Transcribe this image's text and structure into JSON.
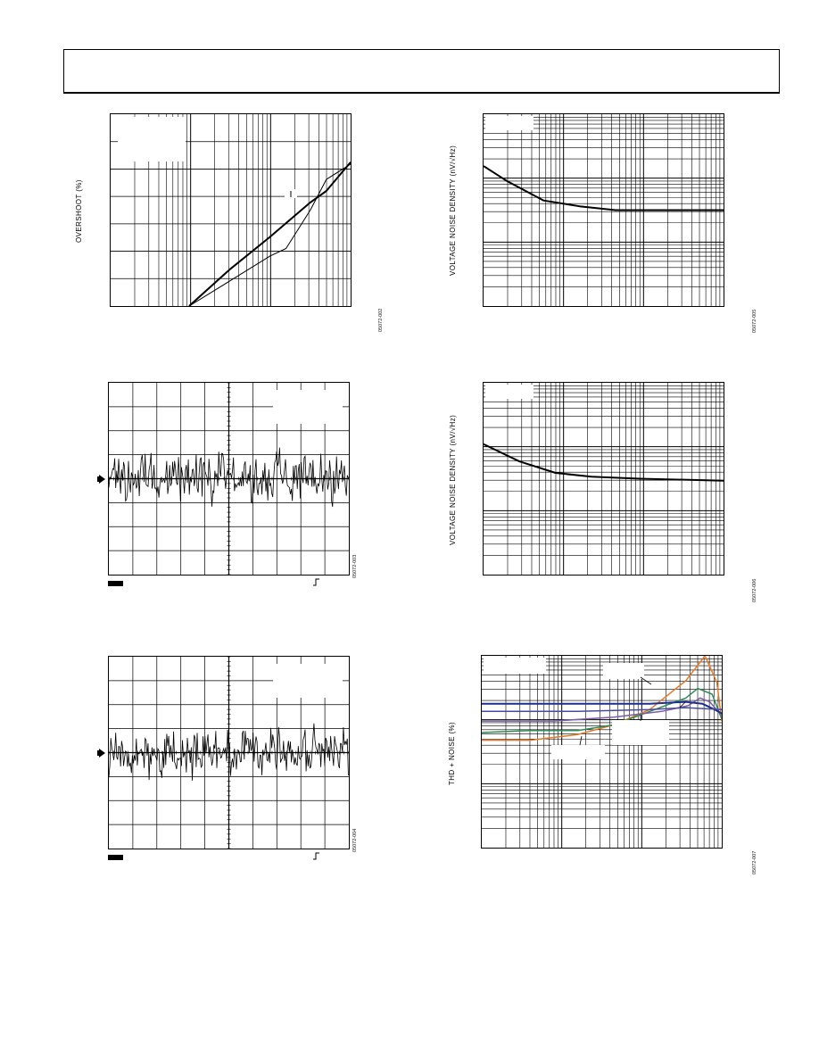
{
  "charts": {
    "overshoot": {
      "ylabel": "OVERSHOOT (%)",
      "figid": "05072-002"
    },
    "noise1": {
      "ylabel": "VOLTAGE NOISE DENSITY (nV/√Hz)",
      "figid": "05072-005"
    },
    "scope1": {
      "figid": "05072-003"
    },
    "noise2": {
      "ylabel": "VOLTAGE NOISE DENSITY (nV/√Hz)",
      "figid": "05072-006"
    },
    "scope2": {
      "figid": "05072-004"
    },
    "thd": {
      "ylabel": "THD + NOISE (%)",
      "figid": "05072-007"
    }
  },
  "chart_data": [
    {
      "type": "line",
      "id": "overshoot",
      "ylabel": "OVERSHOOT (%)",
      "x_scale": "log",
      "series": [
        {
          "x": [
            0.0,
            0.25,
            0.5,
            0.75,
            0.85,
            0.95,
            1.0
          ],
          "values": [
            0.0,
            0.19,
            0.36,
            0.54,
            0.6,
            0.7,
            0.75
          ],
          "weight": "heavy"
        },
        {
          "x": [
            0.0,
            0.25,
            0.5,
            0.6,
            0.75,
            0.85,
            1.0
          ],
          "values": [
            0.0,
            0.13,
            0.26,
            0.3,
            0.5,
            0.66,
            0.74
          ],
          "weight": "light"
        }
      ],
      "grid": true
    },
    {
      "type": "line",
      "id": "noise1",
      "ylabel": "VOLTAGE NOISE DENSITY (nV/√Hz)",
      "x_scale": "log",
      "y_scale": "log",
      "series": [
        {
          "x": [
            0.0,
            0.1,
            0.25,
            0.4,
            0.55,
            1.0
          ],
          "values": [
            0.73,
            0.65,
            0.55,
            0.52,
            0.5,
            0.5
          ]
        }
      ],
      "grid": true
    },
    {
      "type": "line",
      "id": "scope1",
      "grid": true,
      "series": [
        {
          "name": "",
          "kind": "noise-trace"
        }
      ]
    },
    {
      "type": "line",
      "id": "noise2",
      "ylabel": "VOLTAGE NOISE DENSITY (nV/√Hz)",
      "x_scale": "log",
      "y_scale": "log",
      "series": [
        {
          "x": [
            0.0,
            0.15,
            0.3,
            0.45,
            0.65,
            1.0
          ],
          "values": [
            0.68,
            0.59,
            0.53,
            0.51,
            0.5,
            0.49
          ]
        }
      ],
      "grid": true
    },
    {
      "type": "line",
      "id": "scope2",
      "grid": true,
      "series": [
        {
          "name": "",
          "kind": "noise-trace"
        }
      ]
    },
    {
      "type": "line",
      "id": "thd",
      "ylabel": "THD + NOISE (%)",
      "x_scale": "log",
      "y_scale": "log",
      "series": [
        {
          "color": "#e87722",
          "x": [
            0.0,
            0.2,
            0.4,
            0.55,
            0.7,
            0.85,
            0.93,
            0.98,
            1.0
          ],
          "values": [
            0.56,
            0.56,
            0.59,
            0.64,
            0.72,
            0.87,
            1.0,
            0.86,
            0.66
          ]
        },
        {
          "color": "#2e8b57",
          "x": [
            0.0,
            0.2,
            0.4,
            0.55,
            0.7,
            0.85,
            0.9,
            0.96,
            1.0
          ],
          "values": [
            0.6,
            0.61,
            0.61,
            0.64,
            0.71,
            0.78,
            0.83,
            0.8,
            0.67
          ]
        },
        {
          "color": "#7b5ea7",
          "x": [
            0.0,
            0.3,
            0.55,
            0.75,
            0.86,
            0.91,
            0.95,
            1.0
          ],
          "values": [
            0.66,
            0.66,
            0.68,
            0.71,
            0.74,
            0.78,
            0.76,
            0.69
          ]
        },
        {
          "color": "#1c2f8c",
          "x": [
            0.0,
            0.4,
            0.7,
            0.85,
            0.92,
            0.97,
            1.0
          ],
          "values": [
            0.75,
            0.75,
            0.75,
            0.76,
            0.75,
            0.72,
            0.7
          ]
        },
        {
          "color": "#4a4aa0",
          "x": [
            0.0,
            0.4,
            0.7,
            0.85,
            1.0
          ],
          "values": [
            0.71,
            0.71,
            0.72,
            0.73,
            0.72
          ]
        }
      ],
      "grid": true
    }
  ],
  "colors": {
    "orange": "#e87722",
    "green": "#2e8b57",
    "purple": "#7b5ea7",
    "navy": "#1c2f8c"
  }
}
